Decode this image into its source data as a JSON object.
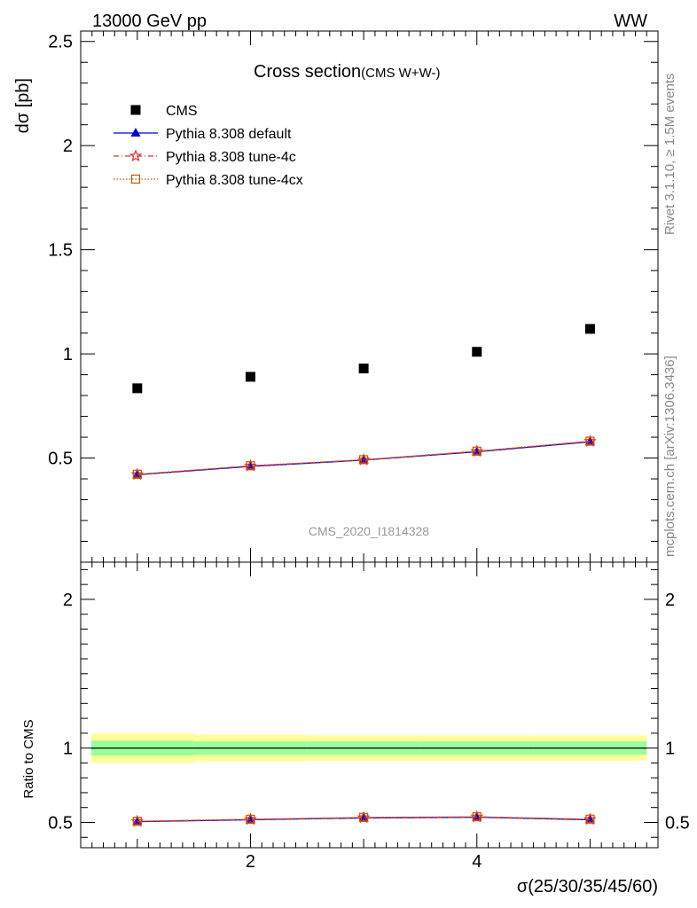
{
  "header": {
    "left": "13000 GeV pp",
    "right": "WW"
  },
  "side_labels": {
    "rivet": "Rivet 3.1.10, ≥ 1.5M events",
    "mcplots": "mcplots.cern.ch [arXiv:1306.3436]"
  },
  "chart_data": [
    {
      "type": "scatter",
      "title": "Cross section",
      "subtitle": "(CMS W+W-)",
      "ylabel": "dσ [pb]",
      "xlabel": "",
      "watermark": "CMS_2020_I1814328",
      "xlim": [
        0.5,
        5.6
      ],
      "ylim": [
        0,
        2.55
      ],
      "x_ticks": [
        2,
        4
      ],
      "y_ticks": [
        0.5,
        1,
        1.5,
        2,
        2.5
      ],
      "y_tick_labels": [
        "0.5",
        "1",
        "1.5",
        "2",
        "2.5"
      ],
      "legend_position": "top-left",
      "series": [
        {
          "name": "CMS",
          "marker": "square",
          "color": "#000000",
          "x": [
            1,
            2,
            3,
            4,
            5
          ],
          "y": [
            0.835,
            0.89,
            0.93,
            1.01,
            1.12
          ]
        },
        {
          "name": "Pythia 8.308 default",
          "marker": "triangle",
          "color": "#0000cc",
          "x": [
            1,
            2,
            3,
            4,
            5
          ],
          "y": [
            0.42,
            0.46,
            0.49,
            0.53,
            0.578
          ]
        },
        {
          "name": "Pythia 8.308 tune-4c",
          "marker": "star",
          "color": "#e03030",
          "x": [
            1,
            2,
            3,
            4,
            5
          ],
          "y": [
            0.421,
            0.462,
            0.491,
            0.532,
            0.58
          ]
        },
        {
          "name": "Pythia 8.308 tune-4cx",
          "marker": "open-square",
          "color": "#cc5500",
          "x": [
            1,
            2,
            3,
            4,
            5
          ],
          "y": [
            0.422,
            0.463,
            0.492,
            0.533,
            0.581
          ]
        }
      ]
    },
    {
      "type": "line",
      "ylabel": "Ratio to CMS",
      "xlabel": "σ(25/30/35/45/60)",
      "xlim": [
        0.5,
        5.6
      ],
      "ylim": [
        0.33,
        2.25
      ],
      "x_ticks": [
        2,
        4
      ],
      "x_tick_labels": [
        "2",
        "4"
      ],
      "y_ticks": [
        0.5,
        1,
        2
      ],
      "y_tick_labels": [
        "0.5",
        "1",
        "2"
      ],
      "bands": {
        "bin_edges": [
          0.5,
          1.5,
          2.5,
          3.5,
          4.5,
          5.5
        ],
        "yellow_halfwidth": [
          0.1,
          0.09,
          0.085,
          0.085,
          0.085
        ],
        "green_halfwidth": [
          0.05,
          0.045,
          0.045,
          0.045,
          0.045
        ],
        "colors": {
          "yellow": "#ffff99",
          "green": "#99ff99"
        }
      },
      "series": [
        {
          "name": "Pythia 8.308 default",
          "color": "#0000cc",
          "x": [
            1,
            2,
            3,
            4,
            5
          ],
          "y": [
            0.505,
            0.518,
            0.53,
            0.535,
            0.518
          ]
        },
        {
          "name": "Pythia 8.308 tune-4c",
          "color": "#e03030",
          "x": [
            1,
            2,
            3,
            4,
            5
          ],
          "y": [
            0.507,
            0.52,
            0.532,
            0.537,
            0.52
          ]
        },
        {
          "name": "Pythia 8.308 tune-4cx",
          "color": "#cc5500",
          "x": [
            1,
            2,
            3,
            4,
            5
          ],
          "y": [
            0.508,
            0.521,
            0.534,
            0.538,
            0.522
          ]
        }
      ]
    }
  ]
}
